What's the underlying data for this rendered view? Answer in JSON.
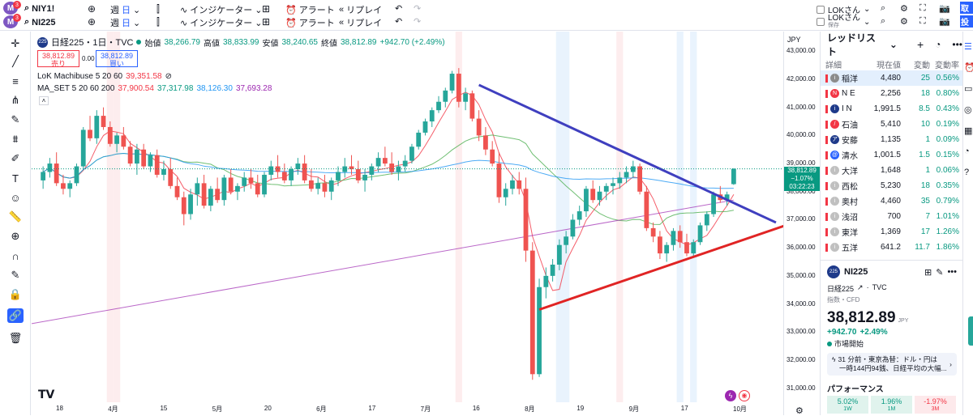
{
  "topbar": {
    "avatar_letter": "M",
    "badge1": "3",
    "badge2": "3",
    "symbol1": "NIY1!",
    "symbol2": "NI225",
    "interval_label": "週",
    "interval_value": "日",
    "indicators_label": "インジケーター",
    "alert_label": "アラート",
    "replay_label": "リプレイ",
    "layout1_name": "LOKさん",
    "layout2_name": "LOKさん",
    "layout2_status": "保存",
    "edge_label1": "取",
    "edge_label2": "投"
  },
  "legend": {
    "symbol_icon": "225",
    "title": "日経225・1日・TVC",
    "open_label": "始値",
    "open": "38,266.79",
    "high_label": "高値",
    "high": "38,833.99",
    "low_label": "安値",
    "low": "38,240.65",
    "close_label": "終値",
    "close": "38,812.89",
    "change": "+942.70 (+2.49%)",
    "sell_price": "38,812.89",
    "sell_label": "売り",
    "spread": "0.00",
    "buy_price": "38,812.89",
    "buy_label": "買い",
    "ind1_name": "LoK Machibuse 5 20 60",
    "ind1_value": "39,351.58",
    "ind2_name": "MA_SET 5 20 60 200",
    "ind2_v1": "37,900.54",
    "ind2_v2": "37,317.98",
    "ind2_v3": "38,126.30",
    "ind2_v4": "37,693.28"
  },
  "price_axis": {
    "currency": "JPY",
    "ticks": [
      "43,000.00",
      "42,000.00",
      "41,000.00",
      "40,000.00",
      "39,000.00",
      "38,000.00",
      "37,000.00",
      "36,000.00",
      "35,000.00",
      "34,000.00",
      "33,000.00",
      "32,000.00",
      "31,000.00"
    ],
    "current_price": "38,812.89",
    "current_change": "−1.07%",
    "countdown": "03:22:23"
  },
  "time_axis": {
    "labels": [
      "18",
      "4月",
      "15",
      "5月",
      "20",
      "6月",
      "17",
      "7月",
      "16",
      "8月",
      "19",
      "9月",
      "17",
      "10月"
    ]
  },
  "chart_data": {
    "type": "candlestick",
    "title": "日経225・1日・TVC",
    "ylim": [
      30500,
      43700
    ],
    "candles": [
      [
        38400,
        38900,
        38100,
        38700
      ],
      [
        38700,
        39200,
        38500,
        39000
      ],
      [
        39000,
        39400,
        38200,
        38300
      ],
      [
        38300,
        38600,
        37900,
        38100
      ],
      [
        38100,
        38400,
        37800,
        38300
      ],
      [
        38300,
        39000,
        38200,
        38900
      ],
      [
        38900,
        40300,
        38800,
        40200
      ],
      [
        40200,
        40700,
        39800,
        39900
      ],
      [
        39900,
        40900,
        39700,
        40700
      ],
      [
        40700,
        41000,
        40200,
        40300
      ],
      [
        40300,
        40500,
        39600,
        39700
      ],
      [
        39700,
        40100,
        39400,
        40000
      ],
      [
        40000,
        40300,
        39500,
        39600
      ],
      [
        39600,
        39800,
        38900,
        39000
      ],
      [
        39000,
        39700,
        38600,
        39500
      ],
      [
        39500,
        39700,
        38800,
        38900
      ],
      [
        38900,
        39400,
        38700,
        39300
      ],
      [
        39300,
        39500,
        38500,
        38600
      ],
      [
        38600,
        39100,
        38400,
        38800
      ],
      [
        38800,
        39200,
        38100,
        38200
      ],
      [
        38200,
        38500,
        37700,
        37800
      ],
      [
        37800,
        38000,
        36800,
        37200
      ],
      [
        37200,
        38100,
        37000,
        37900
      ],
      [
        37900,
        38500,
        37500,
        38300
      ],
      [
        38300,
        38600,
        37400,
        37500
      ],
      [
        37500,
        38200,
        37300,
        38100
      ],
      [
        38100,
        38500,
        37600,
        37700
      ],
      [
        37700,
        38600,
        37500,
        38500
      ],
      [
        38500,
        38800,
        37900,
        38000
      ],
      [
        38000,
        38300,
        37700,
        38200
      ],
      [
        38200,
        38700,
        38000,
        38500
      ],
      [
        38500,
        38800,
        38100,
        38300
      ],
      [
        38300,
        38600,
        37800,
        37900
      ],
      [
        37900,
        38700,
        37800,
        38600
      ],
      [
        38600,
        39100,
        38400,
        38900
      ],
      [
        38900,
        39300,
        38500,
        38700
      ],
      [
        38700,
        39000,
        38300,
        38400
      ],
      [
        38400,
        38900,
        38200,
        38800
      ],
      [
        38800,
        39200,
        38600,
        39000
      ],
      [
        39000,
        39300,
        38300,
        38400
      ],
      [
        38400,
        38800,
        38000,
        38100
      ],
      [
        38100,
        38500,
        37900,
        38300
      ],
      [
        38300,
        38600,
        37800,
        38000
      ],
      [
        38000,
        38500,
        37700,
        38400
      ],
      [
        38400,
        38900,
        38200,
        38700
      ],
      [
        38700,
        39200,
        38500,
        38900
      ],
      [
        38900,
        39300,
        38600,
        38800
      ],
      [
        38800,
        39100,
        38300,
        38400
      ],
      [
        38400,
        38800,
        38000,
        38600
      ],
      [
        38600,
        39000,
        38400,
        38900
      ],
      [
        38900,
        39400,
        38700,
        39200
      ],
      [
        39200,
        39600,
        38900,
        39000
      ],
      [
        39000,
        39400,
        38600,
        38700
      ],
      [
        38700,
        39100,
        38400,
        38900
      ],
      [
        38900,
        39300,
        38700,
        39100
      ],
      [
        39100,
        39700,
        39000,
        39600
      ],
      [
        39600,
        40200,
        39500,
        40100
      ],
      [
        40100,
        40600,
        40000,
        40500
      ],
      [
        40500,
        41000,
        40300,
        40900
      ],
      [
        40900,
        41400,
        40800,
        41200
      ],
      [
        41200,
        41700,
        41000,
        41600
      ],
      [
        41600,
        42300,
        41500,
        42200
      ],
      [
        42200,
        42400,
        41000,
        41200
      ],
      [
        41200,
        41700,
        40900,
        41500
      ],
      [
        41500,
        41600,
        40500,
        40600
      ],
      [
        40600,
        40900,
        39800,
        40000
      ],
      [
        40000,
        40300,
        39300,
        39500
      ],
      [
        39500,
        39800,
        38900,
        39000
      ],
      [
        39000,
        39400,
        37600,
        37800
      ],
      [
        37800,
        38300,
        37500,
        38100
      ],
      [
        38100,
        38600,
        37900,
        38400
      ],
      [
        38400,
        38700,
        37900,
        38100
      ],
      [
        38100,
        38500,
        35500,
        35900
      ],
      [
        35900,
        36200,
        31300,
        31500
      ],
      [
        31500,
        34900,
        31400,
        34600
      ],
      [
        34600,
        35300,
        34200,
        35000
      ],
      [
        35000,
        35600,
        34800,
        35400
      ],
      [
        35400,
        36300,
        35200,
        36100
      ],
      [
        36100,
        36600,
        35800,
        36400
      ],
      [
        36400,
        37200,
        36300,
        37000
      ],
      [
        37000,
        37500,
        36800,
        37300
      ],
      [
        37300,
        38200,
        37100,
        38100
      ],
      [
        38100,
        38400,
        37600,
        37700
      ],
      [
        37700,
        38200,
        37500,
        38000
      ],
      [
        38000,
        38300,
        37700,
        38200
      ],
      [
        38200,
        38500,
        37900,
        38300
      ],
      [
        38300,
        38700,
        38100,
        38500
      ],
      [
        38500,
        38900,
        38300,
        38700
      ],
      [
        38700,
        39100,
        38500,
        38900
      ],
      [
        38900,
        39000,
        37900,
        38000
      ],
      [
        38000,
        38200,
        36600,
        36700
      ],
      [
        36700,
        36900,
        36200,
        36400
      ],
      [
        36400,
        36600,
        35600,
        35800
      ],
      [
        35800,
        36200,
        35500,
        36100
      ],
      [
        36100,
        36700,
        35900,
        36600
      ],
      [
        36600,
        36800,
        36000,
        36200
      ],
      [
        36200,
        36500,
        35700,
        35800
      ],
      [
        35800,
        36300,
        35700,
        36200
      ],
      [
        36200,
        36900,
        36100,
        36800
      ],
      [
        36800,
        37300,
        36600,
        37200
      ],
      [
        37200,
        38000,
        37100,
        37900
      ],
      [
        37900,
        38200,
        37600,
        37700
      ],
      [
        37700,
        38000,
        37500,
        37900
      ],
      [
        38266.79,
        38833.99,
        38240.65,
        38812.89
      ]
    ]
  },
  "watchlist": {
    "title": "レッドリスト",
    "col1": "詳細",
    "col2": "現在値",
    "col3": "変動",
    "col4": "変動率",
    "rows": [
      {
        "name": "稲洋",
        "price": "4,480",
        "chg": "25",
        "pct": "0.56%",
        "color": "#8c8c8c",
        "mark": "i"
      },
      {
        "name": "N E",
        "price": "2,256",
        "chg": "18",
        "pct": "0.80%",
        "color": "#f23645",
        "mark": "N"
      },
      {
        "name": "I N",
        "price": "1,991.5",
        "chg": "8.5",
        "pct": "0.43%",
        "color": "#1e3a8a",
        "mark": "i"
      },
      {
        "name": "石油",
        "price": "5,410",
        "chg": "10",
        "pct": "0.19%",
        "color": "#f23645",
        "mark": "/"
      },
      {
        "name": "安藤",
        "price": "1,135",
        "chg": "1",
        "pct": "0.09%",
        "color": "#1e3a8a",
        "mark": "ア"
      },
      {
        "name": "清水",
        "price": "1,001.5",
        "chg": "1.5",
        "pct": "0.15%",
        "color": "#2962ff",
        "mark": "@"
      },
      {
        "name": "大洋",
        "price": "1,648",
        "chg": "1",
        "pct": "0.06%",
        "color": "#c0c0c0",
        "mark": "i"
      },
      {
        "name": "西松",
        "price": "5,230",
        "chg": "18",
        "pct": "0.35%",
        "color": "#c0c0c0",
        "mark": "i"
      },
      {
        "name": "奥村",
        "price": "4,460",
        "chg": "35",
        "pct": "0.79%",
        "color": "#c0c0c0",
        "mark": "i"
      },
      {
        "name": "浅沼",
        "price": "700",
        "chg": "7",
        "pct": "1.01%",
        "color": "#c0c0c0",
        "mark": "i"
      },
      {
        "name": "東洋",
        "price": "1,369",
        "chg": "17",
        "pct": "1.26%",
        "color": "#c0c0c0",
        "mark": "i"
      },
      {
        "name": "五洋",
        "price": "641.2",
        "chg": "11.7",
        "pct": "1.86%",
        "color": "#c0c0c0",
        "mark": "i"
      }
    ]
  },
  "detail": {
    "symbol_icon": "225",
    "symbol": "NI225",
    "name": "日経225",
    "source": "TVC",
    "type": "指数・CFD",
    "price": "38,812.89",
    "currency": "JPY",
    "change": "+942.70",
    "change_pct": "+2.49%",
    "status": "市場開始",
    "news_time": "31 分前・東京為替：ドル・円は",
    "news_text": "一時144円94銭、日経平均の大幅...",
    "perf_title": "パフォーマンス",
    "perf": [
      "5.02%",
      "1.96%",
      "-1.97%"
    ],
    "perf_labels": [
      "1W",
      "1M",
      "3M"
    ]
  }
}
